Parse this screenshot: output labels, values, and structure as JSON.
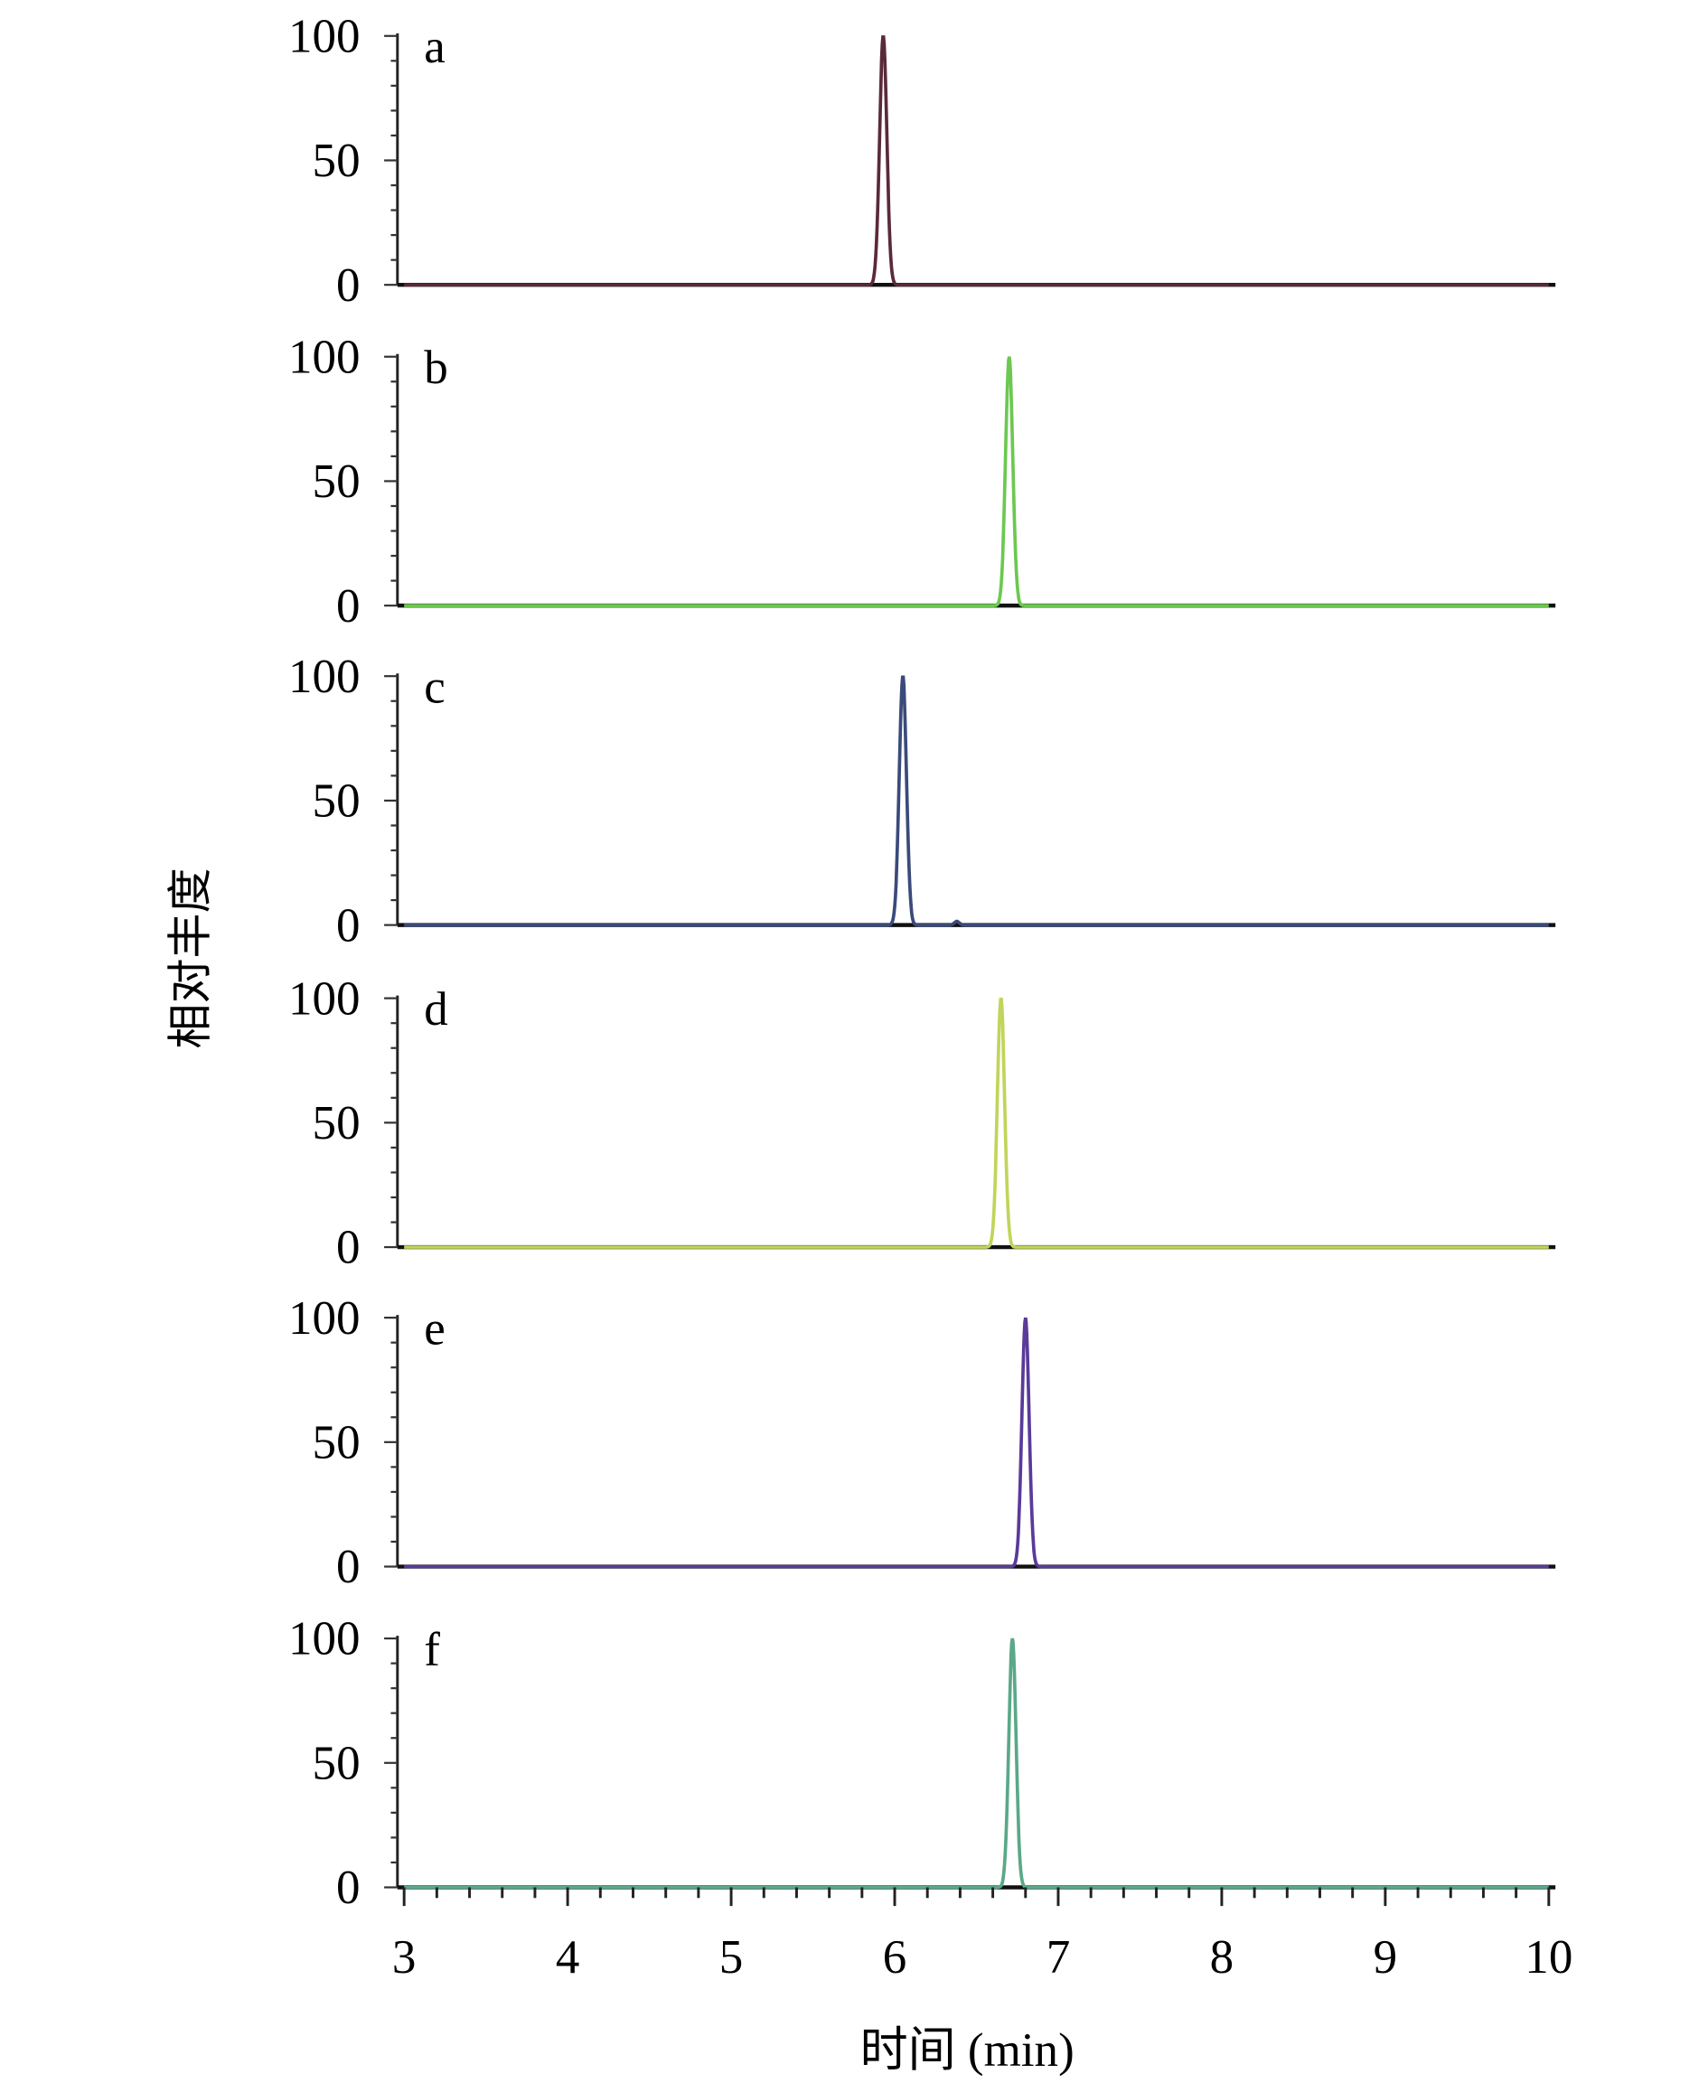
{
  "chart_data": {
    "type": "line",
    "xlabel": "时间 (min)",
    "ylabel": "相对丰度",
    "xlim": [
      3,
      10
    ],
    "ylim": [
      0,
      100
    ],
    "x_ticks": [
      "3",
      "4",
      "5",
      "6",
      "7",
      "8",
      "9",
      "10"
    ],
    "y_ticks": [
      "0",
      "50",
      "100"
    ],
    "grid": false,
    "panels": [
      {
        "label": "a",
        "color": "#5a2a3a",
        "peak_rt": 5.93,
        "peak_height": 100,
        "minor_peaks": []
      },
      {
        "label": "b",
        "color": "#6cc850",
        "peak_rt": 6.7,
        "peak_height": 100,
        "minor_peaks": []
      },
      {
        "label": "c",
        "color": "#3a4a7a",
        "peak_rt": 6.05,
        "peak_height": 100,
        "minor_peaks": [
          {
            "rt": 6.38,
            "height": 1.5
          }
        ]
      },
      {
        "label": "d",
        "color": "#c2d45a",
        "peak_rt": 6.65,
        "peak_height": 100,
        "minor_peaks": []
      },
      {
        "label": "e",
        "color": "#5a3a9a",
        "peak_rt": 6.8,
        "peak_height": 100,
        "minor_peaks": []
      },
      {
        "label": "f",
        "color": "#5aa888",
        "peak_rt": 6.72,
        "peak_height": 100,
        "minor_peaks": []
      }
    ]
  }
}
